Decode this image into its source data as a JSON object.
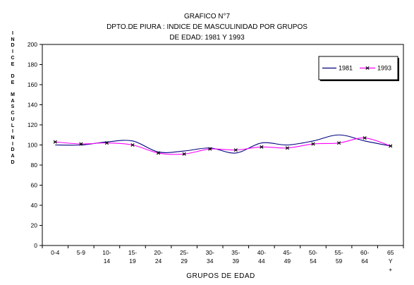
{
  "chart_data": {
    "type": "line",
    "title_lines": [
      "GRAFICO N°7",
      "DPTO.DE PIURA : INDICE DE MASCULINIDAD POR GRUPOS",
      "DE EDAD: 1981 Y 1993"
    ],
    "ylabel_text": "INDICE DE MASCULINIDAD",
    "xlabel": "GRUPOS DE EDAD",
    "categories": [
      [
        "0-4"
      ],
      [
        "5-9"
      ],
      [
        "10-",
        "14"
      ],
      [
        "15-",
        "19"
      ],
      [
        "20-",
        "24"
      ],
      [
        "25-",
        "29"
      ],
      [
        "30-",
        "34"
      ],
      [
        "35-",
        "39"
      ],
      [
        "40-",
        "44"
      ],
      [
        "45-",
        "49"
      ],
      [
        "50-",
        "54"
      ],
      [
        "55-",
        "59"
      ],
      [
        "60-",
        "64"
      ],
      [
        "65",
        "Y",
        "+"
      ]
    ],
    "ylim": [
      0,
      200
    ],
    "yticks": [
      "0",
      "20",
      "40",
      "60",
      "80",
      "100",
      "120",
      "140",
      "160",
      "180",
      "200"
    ],
    "grid": false,
    "legend_position": "top-right",
    "series": [
      {
        "name": "1981",
        "color": "#000080",
        "marker": "none",
        "values": [
          100,
          100,
          103,
          104,
          93,
          94,
          97,
          92,
          102,
          100,
          104,
          110,
          104,
          99
        ]
      },
      {
        "name": "1993",
        "color": "#ff00ff",
        "marker": "x",
        "values": [
          103,
          101,
          102,
          100,
          92,
          91,
          96,
          95,
          98,
          97,
          101,
          102,
          107,
          99
        ]
      }
    ]
  }
}
